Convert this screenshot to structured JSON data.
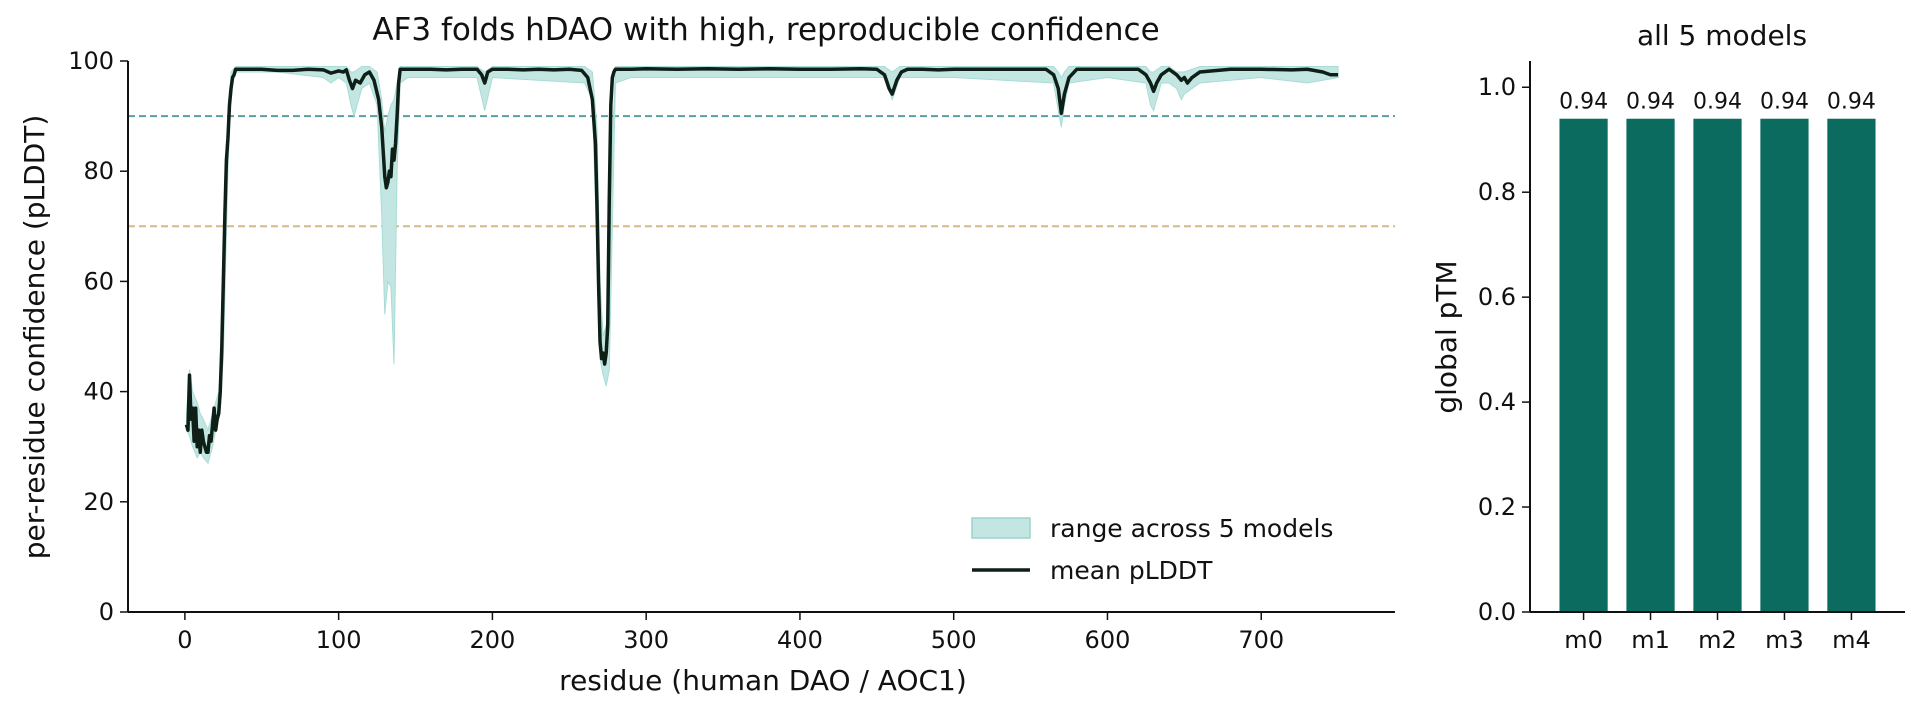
{
  "chart_data": [
    {
      "type": "line",
      "title": "AF3 folds hDAO with high, reproducible confidence",
      "xlabel": "residue (human DAO / AOC1)",
      "ylabel": "per-residue confidence (pLDDT)",
      "xlim": [
        -37,
        787
      ],
      "ylim": [
        0,
        100
      ],
      "xticks": [
        0,
        100,
        200,
        300,
        400,
        500,
        600,
        700
      ],
      "yticks": [
        0,
        20,
        40,
        60,
        80,
        100
      ],
      "grid": false,
      "legend_placement": "lower-right",
      "reference_lines": [
        {
          "y": 90,
          "color": "#5b9fa6",
          "style": "dashed"
        },
        {
          "y": 70,
          "color": "#d6b98a",
          "style": "dashed"
        }
      ],
      "series": [
        {
          "name": "range across 5 models",
          "kind": "band",
          "color": "#a9dcd6",
          "x": [
            1,
            3,
            5,
            8,
            10,
            12,
            15,
            18,
            20,
            22,
            25,
            28,
            30,
            33,
            38,
            60,
            90,
            95,
            100,
            105,
            108,
            110,
            115,
            120,
            125,
            128,
            130,
            132,
            134,
            136,
            138,
            140,
            145,
            190,
            195,
            200,
            260,
            265,
            268,
            270,
            272,
            274,
            276,
            278,
            280,
            290,
            300,
            400,
            455,
            460,
            465,
            500,
            565,
            568,
            570,
            572,
            575,
            600,
            625,
            628,
            630,
            635,
            640,
            645,
            648,
            650,
            660,
            700,
            730,
            750
          ],
          "lower": [
            33,
            32,
            30,
            28,
            29,
            28,
            27,
            30,
            33,
            35,
            46,
            80,
            96,
            98,
            98,
            98,
            97,
            96,
            97,
            96,
            92,
            90,
            95,
            96,
            92,
            72,
            54,
            60,
            59,
            45,
            80,
            96,
            97,
            97,
            91,
            97,
            96,
            93,
            65,
            46,
            43,
            41,
            44,
            70,
            96,
            97,
            97,
            97,
            97,
            93,
            97,
            97,
            96,
            91,
            88,
            92,
            96,
            97,
            96,
            92,
            91,
            96,
            96,
            95,
            93,
            94,
            96,
            97,
            96,
            97
          ],
          "upper": [
            36,
            44,
            40,
            38,
            36,
            35,
            33,
            36,
            38,
            40,
            50,
            86,
            98,
            99,
            99,
            99,
            99,
            99,
            99,
            99,
            98,
            98,
            99,
            99,
            98,
            93,
            87,
            90,
            92,
            93,
            96,
            99,
            99,
            99,
            98,
            99,
            99,
            98,
            88,
            60,
            50,
            52,
            56,
            85,
            99,
            99,
            99,
            99,
            99,
            98,
            99,
            99,
            99,
            98,
            97,
            98,
            99,
            99,
            99,
            98,
            98,
            99,
            99,
            98,
            98,
            98,
            99,
            99,
            99,
            99
          ]
        },
        {
          "name": "mean pLDDT",
          "kind": "line",
          "color": "#0d1f16",
          "x": [
            1,
            2,
            3,
            4,
            5,
            6,
            7,
            8,
            9,
            10,
            11,
            12,
            13,
            14,
            15,
            16,
            17,
            18,
            19,
            20,
            21,
            22,
            23,
            24,
            25,
            26,
            27,
            28,
            29,
            30,
            31,
            32,
            33,
            35,
            40,
            50,
            60,
            70,
            80,
            90,
            95,
            100,
            103,
            105,
            107,
            109,
            111,
            114,
            117,
            120,
            123,
            126,
            128,
            130,
            131,
            132,
            133,
            134,
            135,
            136,
            137,
            138,
            139,
            140,
            142,
            145,
            150,
            160,
            170,
            180,
            190,
            193,
            195,
            197,
            200,
            210,
            220,
            230,
            240,
            250,
            258,
            262,
            265,
            267,
            268,
            269,
            270,
            271,
            272,
            273,
            274,
            275,
            276,
            277,
            278,
            279,
            280,
            282,
            285,
            290,
            300,
            320,
            340,
            360,
            380,
            400,
            420,
            440,
            450,
            455,
            458,
            460,
            463,
            466,
            470,
            480,
            490,
            500,
            520,
            540,
            560,
            565,
            568,
            570,
            572,
            575,
            580,
            600,
            620,
            625,
            628,
            630,
            632,
            635,
            640,
            645,
            648,
            650,
            652,
            655,
            660,
            680,
            700,
            720,
            730,
            740,
            745,
            750
          ],
          "y": [
            34,
            33,
            43,
            35,
            37,
            31,
            37,
            30,
            33,
            29,
            33,
            31,
            30,
            29,
            29,
            32,
            31,
            34,
            37,
            33,
            35,
            36,
            40,
            48,
            60,
            72,
            82,
            86,
            92,
            95,
            97,
            97.5,
            98.5,
            98.5,
            98.5,
            98.5,
            98.3,
            98.3,
            98.5,
            98.4,
            97.8,
            98.2,
            98.0,
            98.4,
            96.5,
            95.0,
            96.5,
            96.0,
            97.5,
            98.0,
            96.5,
            93.0,
            88,
            79,
            77,
            78,
            80,
            79,
            84,
            82,
            85,
            90,
            96,
            98.5,
            98.5,
            98.5,
            98.5,
            98.5,
            98.4,
            98.5,
            98.5,
            97.5,
            96.0,
            98.0,
            98.5,
            98.5,
            98.4,
            98.5,
            98.4,
            98.5,
            98.3,
            97.0,
            93.0,
            85,
            74,
            60,
            49,
            46,
            47,
            45,
            47,
            52,
            75,
            92,
            97,
            98,
            98.5,
            98.5,
            98.5,
            98.5,
            98.6,
            98.5,
            98.6,
            98.5,
            98.6,
            98.5,
            98.5,
            98.6,
            98.5,
            97.5,
            95.0,
            94.0,
            96.5,
            98.0,
            98.5,
            98.5,
            98.4,
            98.5,
            98.5,
            98.5,
            98.5,
            97.5,
            95.0,
            90.5,
            94.0,
            97.0,
            98.5,
            98.5,
            98.5,
            97.5,
            96.0,
            94.5,
            96.0,
            97.5,
            98.5,
            97.5,
            96.5,
            97.0,
            96.0,
            97.0,
            98.0,
            98.5,
            98.5,
            98.4,
            98.5,
            98.0,
            97.5,
            97.5
          ]
        }
      ]
    },
    {
      "type": "bar",
      "title": "all 5 models",
      "xlabel": "",
      "ylabel": "global pTM",
      "categories": [
        "m0",
        "m1",
        "m2",
        "m3",
        "m4"
      ],
      "values": [
        0.94,
        0.94,
        0.94,
        0.94,
        0.94
      ],
      "data_labels": [
        "0.94",
        "0.94",
        "0.94",
        "0.94",
        "0.94"
      ],
      "ylim": [
        0,
        1.05
      ],
      "yticks": [
        0.0,
        0.2,
        0.4,
        0.6,
        0.8,
        1.0
      ],
      "ytick_labels": [
        "0.0",
        "0.2",
        "0.4",
        "0.6",
        "0.8",
        "1.0"
      ],
      "grid": false,
      "color": "#0b6b5e"
    }
  ]
}
